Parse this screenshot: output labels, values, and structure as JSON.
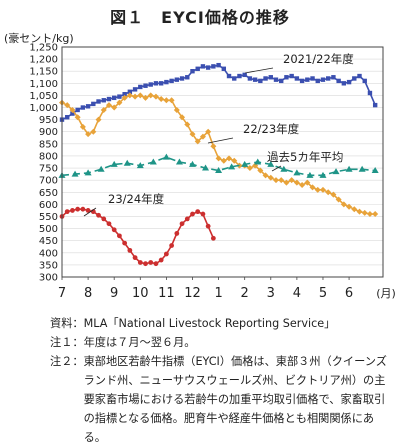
{
  "title": "図１　EYCI価格の推移",
  "ylabel": "(豪セント/kg)",
  "chart_data": {
    "type": "line",
    "x_unit": "(月)",
    "x_ticks": [
      "7",
      "8",
      "9",
      "10",
      "11",
      "12",
      "1",
      "2",
      "3",
      "4",
      "5",
      "6"
    ],
    "ylim": [
      300,
      1250
    ],
    "y_ticks": [
      300,
      350,
      400,
      450,
      500,
      550,
      600,
      650,
      700,
      750,
      800,
      850,
      900,
      950,
      1000,
      1050,
      1100,
      1150,
      1200,
      1250
    ],
    "grid": true,
    "series": [
      {
        "name": "2021/22年度",
        "color": "#3b4fb0",
        "marker": "square",
        "x": [
          7.0,
          7.2,
          7.4,
          7.6,
          7.8,
          8.0,
          8.2,
          8.4,
          8.6,
          8.8,
          9.0,
          9.2,
          9.4,
          9.6,
          9.8,
          10.0,
          10.2,
          10.4,
          10.6,
          10.8,
          11.0,
          11.2,
          11.4,
          11.6,
          11.8,
          12.0,
          12.2,
          12.4,
          12.6,
          12.8,
          13.0,
          13.2,
          13.4,
          13.6,
          13.8,
          14.0,
          14.2,
          14.4,
          14.6,
          14.8,
          15.0,
          15.2,
          15.4,
          15.6,
          15.8,
          16.0,
          16.2,
          16.4,
          16.6,
          16.8,
          17.0,
          17.2,
          17.4,
          17.6,
          17.8,
          18.0,
          18.2,
          18.4,
          18.6,
          18.8,
          19.0
        ],
        "values": [
          950,
          960,
          975,
          990,
          1000,
          1005,
          1015,
          1025,
          1030,
          1035,
          1040,
          1045,
          1055,
          1065,
          1075,
          1085,
          1090,
          1095,
          1100,
          1100,
          1105,
          1110,
          1115,
          1120,
          1125,
          1150,
          1160,
          1170,
          1165,
          1170,
          1175,
          1160,
          1130,
          1120,
          1130,
          1135,
          1120,
          1115,
          1110,
          1120,
          1125,
          1115,
          1110,
          1125,
          1130,
          1120,
          1110,
          1115,
          1120,
          1110,
          1115,
          1120,
          1125,
          1110,
          1100,
          1105,
          1120,
          1130,
          1110,
          1060,
          1010
        ]
      },
      {
        "name": "22/23年度",
        "color": "#e8a33a",
        "marker": "diamond",
        "x": [
          7.0,
          7.2,
          7.4,
          7.6,
          7.8,
          8.0,
          8.2,
          8.4,
          8.6,
          8.8,
          9.0,
          9.2,
          9.4,
          9.6,
          9.8,
          10.0,
          10.2,
          10.4,
          10.6,
          10.8,
          11.0,
          11.2,
          11.4,
          11.6,
          11.8,
          12.0,
          12.2,
          12.4,
          12.6,
          12.8,
          13.0,
          13.2,
          13.4,
          13.6,
          13.8,
          14.0,
          14.2,
          14.4,
          14.6,
          14.8,
          15.0,
          15.2,
          15.4,
          15.6,
          15.8,
          16.0,
          16.2,
          16.4,
          16.6,
          16.8,
          17.0,
          17.2,
          17.4,
          17.6,
          17.8,
          18.0,
          18.2,
          18.4,
          18.6,
          18.8,
          19.0
        ],
        "values": [
          1020,
          1010,
          990,
          960,
          920,
          890,
          900,
          950,
          990,
          1010,
          1000,
          1020,
          1040,
          1050,
          1045,
          1050,
          1040,
          1050,
          1045,
          1035,
          1030,
          1030,
          990,
          960,
          930,
          890,
          860,
          880,
          900,
          840,
          790,
          780,
          790,
          780,
          760,
          760,
          750,
          760,
          740,
          720,
          710,
          700,
          700,
          690,
          700,
          690,
          680,
          690,
          670,
          660,
          660,
          650,
          640,
          620,
          600,
          590,
          580,
          570,
          565,
          560,
          560
        ]
      },
      {
        "name": "過去5カ年平均",
        "color": "#1e9487",
        "marker": "triangle",
        "x": [
          7.0,
          7.5,
          8.0,
          8.5,
          9.0,
          9.5,
          10.0,
          10.5,
          11.0,
          11.5,
          12.0,
          12.5,
          13.0,
          13.5,
          14.0,
          14.5,
          15.0,
          15.5,
          16.0,
          16.5,
          17.0,
          17.5,
          18.0,
          18.5,
          19.0
        ],
        "values": [
          720,
          725,
          730,
          745,
          765,
          770,
          760,
          775,
          795,
          775,
          765,
          750,
          740,
          755,
          765,
          775,
          765,
          745,
          730,
          720,
          720,
          735,
          745,
          745,
          740
        ]
      },
      {
        "name": "23/24年度",
        "color": "#cc2f2f",
        "marker": "circle",
        "x": [
          7.0,
          7.2,
          7.4,
          7.6,
          7.8,
          8.0,
          8.2,
          8.4,
          8.6,
          8.8,
          9.0,
          9.2,
          9.4,
          9.6,
          9.8,
          10.0,
          10.2,
          10.4,
          10.6,
          10.8,
          11.0,
          11.2,
          11.4,
          11.6,
          11.8,
          12.0,
          12.2,
          12.4,
          12.6,
          12.8
        ],
        "values": [
          550,
          570,
          575,
          580,
          580,
          575,
          570,
          555,
          540,
          520,
          495,
          470,
          440,
          410,
          380,
          360,
          355,
          360,
          355,
          370,
          395,
          430,
          480,
          520,
          540,
          560,
          570,
          560,
          510,
          460
        ]
      }
    ],
    "annotations": [
      "2021/22年度",
      "22/23年度",
      "過去5カ年平均",
      "23/24年度"
    ]
  },
  "notes": [
    {
      "head": "資料：",
      "text": "MLA「National Livestock Reporting Service」"
    },
    {
      "head": "注１：",
      "text": "年度は７月～翌６月。"
    },
    {
      "head": "注２：",
      "text": "東部地区若齢牛指標（EYCI）価格は、東部３州（クイーンズランド州、ニューサウスウェールズ州、ビクトリア州）の主要家畜市場における若齢牛の加重平均取引価格で、家畜取引の指標となる価格。肥育牛や経産牛価格とも相関関係にある。"
    }
  ]
}
